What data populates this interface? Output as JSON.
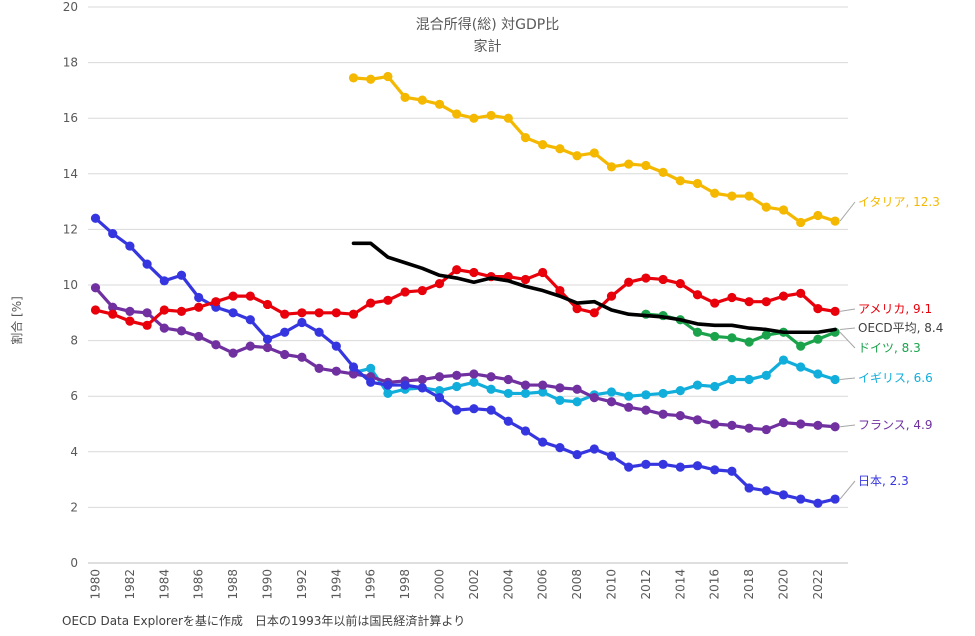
{
  "chart_data": {
    "type": "line",
    "title": "混合所得(総) 対GDP比",
    "subtitle": "家計",
    "ylabel": "割合 [%]",
    "xlabel": "",
    "ylim": [
      0,
      20
    ],
    "yticks": [
      0,
      2,
      4,
      6,
      8,
      10,
      12,
      14,
      16,
      18,
      20
    ],
    "xticks": [
      1980,
      1982,
      1984,
      1986,
      1988,
      1990,
      1992,
      1994,
      1996,
      1998,
      2000,
      2002,
      2004,
      2006,
      2008,
      2010,
      2012,
      2014,
      2016,
      2018,
      2020,
      2022
    ],
    "x": [
      1980,
      1981,
      1982,
      1983,
      1984,
      1985,
      1986,
      1987,
      1988,
      1989,
      1990,
      1991,
      1992,
      1993,
      1994,
      1995,
      1996,
      1997,
      1998,
      1999,
      2000,
      2001,
      2002,
      2003,
      2004,
      2005,
      2006,
      2007,
      2008,
      2009,
      2010,
      2011,
      2012,
      2013,
      2014,
      2015,
      2016,
      2017,
      2018,
      2019,
      2020,
      2021,
      2022,
      2023
    ],
    "grid": true,
    "series": [
      {
        "name": "イタリア",
        "color": "#F5B800",
        "markers": true,
        "label": "イタリア, 12.3",
        "values": [
          null,
          null,
          null,
          null,
          null,
          null,
          null,
          null,
          null,
          null,
          null,
          null,
          null,
          null,
          null,
          17.45,
          17.4,
          17.5,
          16.75,
          16.65,
          16.5,
          16.15,
          16.0,
          16.1,
          16.0,
          15.3,
          15.05,
          14.9,
          14.65,
          14.75,
          14.25,
          14.35,
          14.3,
          14.05,
          13.75,
          13.65,
          13.3,
          13.2,
          13.2,
          12.8,
          12.7,
          12.25,
          12.5,
          12.3
        ]
      },
      {
        "name": "アメリカ",
        "color": "#E8000B",
        "markers": true,
        "label": "アメリカ, 9.1",
        "values": [
          9.1,
          8.95,
          8.7,
          8.55,
          9.1,
          9.05,
          9.2,
          9.4,
          9.6,
          9.6,
          9.3,
          8.95,
          9.0,
          9.0,
          9.0,
          8.95,
          9.35,
          9.45,
          9.75,
          9.8,
          10.05,
          10.55,
          10.45,
          10.3,
          10.3,
          10.2,
          10.45,
          9.8,
          9.15,
          9.0,
          9.6,
          10.1,
          10.25,
          10.2,
          10.05,
          9.65,
          9.35,
          9.55,
          9.4,
          9.4,
          9.6,
          9.7,
          9.15,
          9.05
        ]
      },
      {
        "name": "OECD平均",
        "color": "#000000",
        "markers": false,
        "label": "OECD平均, 8.4",
        "values": [
          null,
          null,
          null,
          null,
          null,
          null,
          null,
          null,
          null,
          null,
          null,
          null,
          null,
          null,
          null,
          11.5,
          11.5,
          11.0,
          10.8,
          10.6,
          10.35,
          10.25,
          10.1,
          10.25,
          10.15,
          9.95,
          9.8,
          9.6,
          9.35,
          9.4,
          9.1,
          8.95,
          8.9,
          8.85,
          8.75,
          8.6,
          8.55,
          8.55,
          8.45,
          8.4,
          8.3,
          8.3,
          8.3,
          8.4
        ]
      },
      {
        "name": "ドイツ",
        "color": "#1BA34C",
        "markers": true,
        "label": "ドイツ, 8.3",
        "values": [
          null,
          null,
          null,
          null,
          null,
          null,
          null,
          null,
          null,
          null,
          null,
          null,
          null,
          null,
          null,
          null,
          null,
          null,
          null,
          null,
          null,
          null,
          null,
          null,
          null,
          null,
          null,
          null,
          null,
          null,
          null,
          null,
          8.95,
          8.9,
          8.75,
          8.3,
          8.15,
          8.1,
          7.95,
          8.2,
          8.3,
          7.8,
          8.05,
          8.3
        ]
      },
      {
        "name": "イギリス",
        "color": "#12AEDB",
        "markers": true,
        "label": "イギリス, 6.6",
        "values": [
          null,
          null,
          null,
          null,
          null,
          null,
          null,
          null,
          null,
          null,
          null,
          null,
          null,
          null,
          null,
          6.85,
          7.0,
          6.1,
          6.25,
          6.3,
          6.2,
          6.35,
          6.5,
          6.25,
          6.1,
          6.1,
          6.15,
          5.85,
          5.8,
          6.05,
          6.15,
          6.0,
          6.05,
          6.1,
          6.2,
          6.4,
          6.35,
          6.6,
          6.6,
          6.75,
          7.3,
          7.05,
          6.8,
          6.6
        ]
      },
      {
        "name": "フランス",
        "color": "#7030A0",
        "markers": true,
        "label": "フランス, 4.9",
        "values": [
          9.9,
          9.2,
          9.05,
          9.0,
          8.45,
          8.35,
          8.15,
          7.85,
          7.55,
          7.8,
          7.75,
          7.5,
          7.4,
          7.0,
          6.9,
          6.8,
          6.7,
          6.5,
          6.55,
          6.6,
          6.7,
          6.75,
          6.8,
          6.7,
          6.6,
          6.4,
          6.4,
          6.3,
          6.25,
          5.95,
          5.8,
          5.6,
          5.5,
          5.35,
          5.3,
          5.15,
          5.0,
          4.95,
          4.85,
          4.8,
          5.05,
          5.0,
          4.95,
          4.9
        ]
      },
      {
        "name": "日本",
        "color": "#3636E0",
        "markers": true,
        "label": "日本, 2.3",
        "values": [
          12.4,
          11.85,
          11.4,
          10.75,
          10.15,
          10.35,
          9.55,
          9.2,
          9.0,
          8.75,
          8.05,
          8.3,
          8.65,
          8.3,
          7.8,
          7.05,
          6.5,
          6.4,
          6.4,
          6.3,
          5.95,
          5.5,
          5.55,
          5.5,
          5.1,
          4.75,
          4.35,
          4.15,
          3.9,
          4.1,
          3.85,
          3.45,
          3.55,
          3.55,
          3.45,
          3.5,
          3.35,
          3.3,
          2.7,
          2.6,
          2.45,
          2.3,
          2.15,
          2.3
        ]
      }
    ]
  },
  "footnote": "OECD Data Explorerを基に作成　日本の1993年以前は国民経済計算より"
}
